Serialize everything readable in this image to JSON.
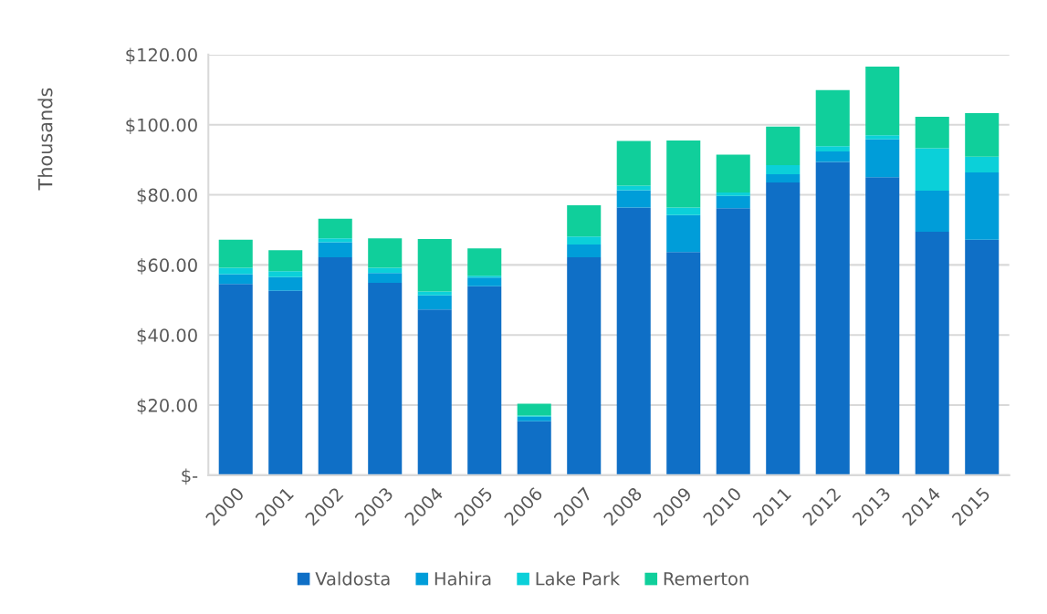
{
  "chart_data": {
    "type": "bar",
    "stacked": true,
    "ylabel": "Thousands",
    "categories": [
      "2000",
      "2001",
      "2002",
      "2003",
      "2004",
      "2005",
      "2006",
      "2007",
      "2008",
      "2009",
      "2010",
      "2011",
      "2012",
      "2013",
      "2014",
      "2015"
    ],
    "series": [
      {
        "name": "Valdosta",
        "color": "#0f6fc6",
        "values": [
          54.6,
          52.6,
          62.2,
          54.9,
          47.3,
          53.9,
          15.4,
          62.2,
          76.4,
          63.7,
          76.2,
          83.5,
          89.4,
          85.0,
          69.5,
          67.2
        ]
      },
      {
        "name": "Hahira",
        "color": "#009dd9",
        "values": [
          2.8,
          3.9,
          4.3,
          2.8,
          4.0,
          2.5,
          1.3,
          3.6,
          4.9,
          10.5,
          3.5,
          2.4,
          3.0,
          10.8,
          11.7,
          19.2
        ]
      },
      {
        "name": "Lake Park",
        "color": "#0bd0d9",
        "values": [
          1.8,
          1.7,
          1.1,
          1.5,
          1.1,
          0.5,
          0.3,
          2.3,
          1.3,
          2.2,
          1.0,
          2.6,
          1.5,
          1.2,
          12.1,
          4.5
        ]
      },
      {
        "name": "Remerton",
        "color": "#10cf9b",
        "values": [
          8.0,
          6.0,
          5.6,
          8.4,
          15.0,
          7.8,
          3.4,
          8.9,
          12.8,
          19.1,
          10.8,
          11.0,
          16.0,
          19.6,
          9.0,
          12.4
        ]
      }
    ],
    "ylim": [
      0,
      120
    ],
    "yticks": [
      {
        "value": 0,
        "label": "$-"
      },
      {
        "value": 20,
        "label": "$20.00"
      },
      {
        "value": 40,
        "label": "$40.00"
      },
      {
        "value": 60,
        "label": "$60.00"
      },
      {
        "value": 80,
        "label": "$80.00"
      },
      {
        "value": 100,
        "label": "$100.00"
      },
      {
        "value": 120,
        "label": "$120.00"
      }
    ],
    "grid": "y",
    "legend": "bottom"
  }
}
